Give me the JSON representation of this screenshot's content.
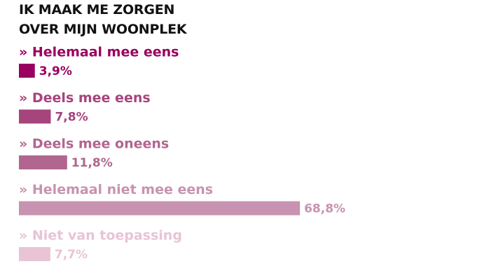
{
  "chart_data": {
    "type": "bar",
    "orientation": "horizontal",
    "title": "IK MAAK ME ZORGEN OVER MIJN WOONPLEK",
    "categories": [
      "» Helemaal mee eens",
      "» Deels mee eens",
      "» Deels mee oneens",
      "» Helemaal niet mee eens",
      "» Niet van toepassing"
    ],
    "values": [
      3.9,
      7.8,
      11.8,
      68.8,
      7.7
    ],
    "value_labels": [
      "3,9%",
      "7,8%",
      "11,8%",
      "68,8%",
      "7,7%"
    ],
    "colors": [
      "#990060",
      "#a6447c",
      "#b0668f",
      "#c793b0",
      "#e8c4d5"
    ]
  }
}
